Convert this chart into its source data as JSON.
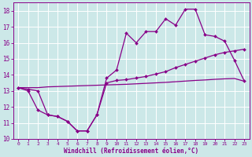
{
  "xlabel": "Windchill (Refroidissement éolien,°C)",
  "bg_color": "#cce8e8",
  "line_color": "#880088",
  "xlim": [
    -0.5,
    23.5
  ],
  "ylim": [
    10,
    18.5
  ],
  "yticks": [
    10,
    11,
    12,
    13,
    14,
    15,
    16,
    17,
    18
  ],
  "xticks": [
    0,
    1,
    2,
    3,
    4,
    5,
    6,
    7,
    8,
    9,
    10,
    11,
    12,
    13,
    14,
    15,
    16,
    17,
    18,
    19,
    20,
    21,
    22,
    23
  ],
  "line1_x": [
    0,
    1,
    2,
    3,
    4,
    5,
    6,
    7,
    8,
    9,
    10,
    11,
    12,
    13,
    14,
    15,
    16,
    17,
    18,
    19,
    20,
    21,
    22,
    23
  ],
  "line1_y": [
    13.2,
    13.1,
    13.0,
    11.5,
    11.4,
    11.1,
    10.5,
    10.5,
    11.5,
    13.8,
    14.3,
    16.6,
    16.0,
    16.7,
    16.7,
    17.5,
    17.1,
    18.1,
    18.1,
    16.5,
    16.4,
    16.1,
    14.9,
    13.6
  ],
  "line2_x": [
    0,
    1,
    2,
    3,
    4,
    5,
    6,
    7,
    8,
    9,
    10,
    11,
    12,
    13,
    14,
    15,
    16,
    17,
    18,
    19,
    20,
    21,
    22,
    23
  ],
  "line2_y": [
    13.2,
    13.0,
    11.8,
    11.5,
    11.4,
    11.1,
    10.5,
    10.5,
    11.5,
    13.5,
    13.65,
    13.7,
    13.8,
    13.9,
    14.05,
    14.2,
    14.45,
    14.65,
    14.85,
    15.05,
    15.25,
    15.4,
    15.5,
    15.6
  ],
  "line3_x": [
    0,
    1,
    2,
    3,
    4,
    5,
    6,
    7,
    8,
    9,
    10,
    11,
    12,
    13,
    14,
    15,
    16,
    17,
    18,
    19,
    20,
    21,
    22,
    23
  ],
  "line3_y": [
    13.2,
    13.2,
    13.2,
    13.25,
    13.27,
    13.29,
    13.31,
    13.33,
    13.35,
    13.37,
    13.39,
    13.41,
    13.44,
    13.47,
    13.5,
    13.53,
    13.57,
    13.61,
    13.65,
    13.68,
    13.72,
    13.75,
    13.77,
    13.6
  ]
}
